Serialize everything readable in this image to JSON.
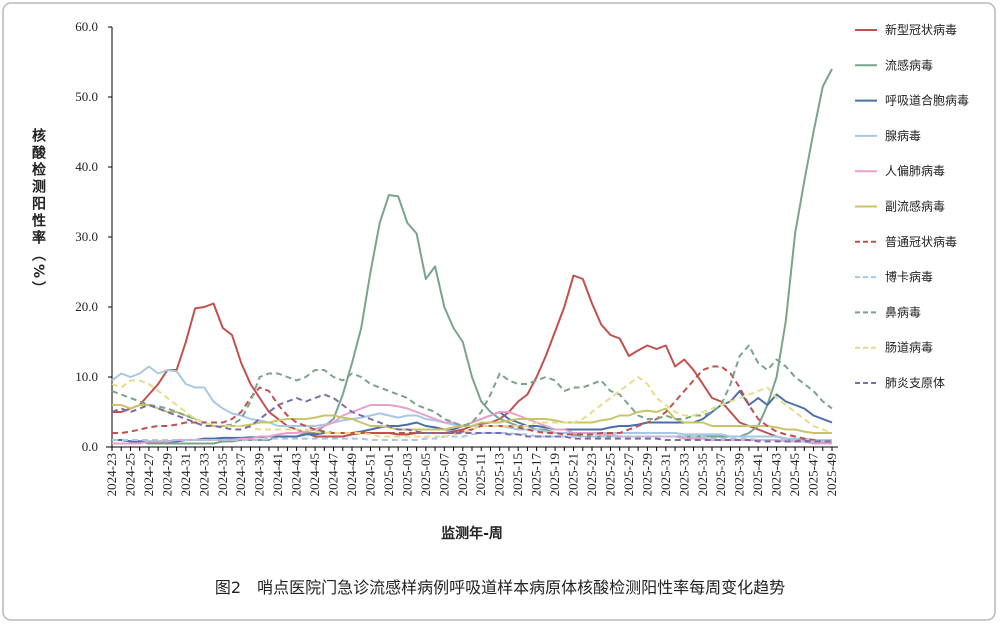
{
  "chart_data": {
    "type": "line",
    "title": "图2　哨点医院门急诊流感样病例呼吸道样本病原体核酸检测阳性率每周变化趋势",
    "x_label": "监测年-周",
    "y_label": "核酸检测阳性率（%）",
    "categories": [
      "2024-23",
      null,
      "2024-25",
      null,
      "2024-27",
      null,
      "2024-29",
      null,
      "2024-31",
      null,
      "2024-33",
      null,
      "2024-35",
      null,
      "2024-37",
      null,
      "2024-39",
      null,
      "2024-41",
      null,
      "2024-43",
      null,
      "2024-45",
      null,
      "2024-47",
      null,
      "2024-49",
      null,
      "2024-51",
      null,
      "2025-01",
      null,
      "2025-03",
      null,
      "2025-05",
      null,
      "2025-07",
      null,
      "2025-09",
      null,
      "2025-11",
      null,
      "2025-13",
      null,
      "2025-15",
      null,
      "2025-17",
      null,
      "2025-19",
      null,
      "2025-21",
      null,
      "2025-23",
      null,
      "2025-25",
      null,
      "2025-27",
      null,
      "2025-29",
      null,
      "2025-31",
      null,
      "2025-33",
      null,
      "2025-35",
      null,
      "2025-37",
      null,
      "2025-39",
      null,
      "2025-41",
      null,
      "2025-43",
      null,
      "2025-45",
      null,
      "2025-47",
      null,
      "2025-49"
    ],
    "ylim": [
      0,
      60
    ],
    "yticks": [
      {
        "value": 0,
        "label": "0.0"
      },
      {
        "value": 10,
        "label": "10.0"
      },
      {
        "value": 20,
        "label": "20.0"
      },
      {
        "value": 30,
        "label": "30.0"
      },
      {
        "value": 40,
        "label": "40.0"
      },
      {
        "value": 50,
        "label": "50.0"
      },
      {
        "value": 60,
        "label": "60.0"
      }
    ],
    "grid": false,
    "legend": "right",
    "series": [
      {
        "name": "新型冠状病毒",
        "color": "#c0504d",
        "dashed": false,
        "values": [
          5,
          5,
          5.5,
          6,
          7.5,
          9,
          11,
          11,
          15,
          19.8,
          20,
          20.5,
          17,
          16,
          12,
          9,
          7,
          5,
          4,
          3,
          2.5,
          2,
          1.5,
          1.5,
          1.5,
          1.5,
          1.8,
          2,
          2,
          2,
          2,
          1.8,
          1.8,
          2,
          2,
          2,
          2,
          2.2,
          2.5,
          3,
          3.3,
          3.5,
          4,
          5,
          6.5,
          7.5,
          10,
          13,
          16.5,
          20,
          24.5,
          24,
          20.5,
          17.5,
          16,
          15.5,
          13,
          13.8,
          14.5,
          14,
          14.5,
          11.5,
          12.5,
          11,
          9,
          7,
          6.5,
          5,
          3.5,
          3,
          2.5,
          2,
          1.5,
          1.2,
          1,
          1,
          0.8,
          0.8,
          0.8
        ]
      },
      {
        "name": "流感病毒",
        "color": "#7aa48a",
        "dashed": false,
        "values": [
          1,
          1,
          0.8,
          0.8,
          0.5,
          0.5,
          0.5,
          0.5,
          0.5,
          0.5,
          0.5,
          0.5,
          0.8,
          0.8,
          1,
          1,
          1,
          1,
          1.5,
          1.5,
          1.5,
          2,
          2,
          3,
          4,
          7.5,
          12,
          17,
          25,
          32,
          36,
          35.8,
          32,
          30.5,
          24,
          25.8,
          20,
          17,
          15,
          10,
          6.5,
          5,
          4,
          3.5,
          3,
          3,
          2.5,
          2.5,
          2,
          2,
          1.8,
          1.5,
          1.5,
          1.5,
          1.5,
          1.5,
          1.5,
          1.5,
          1.5,
          1.5,
          1.5,
          1.5,
          1.5,
          1.5,
          1.5,
          1.5,
          1.5,
          1.5,
          1.5,
          2,
          3,
          6,
          10,
          18,
          30.5,
          38,
          45,
          51.5,
          54
        ]
      },
      {
        "name": "呼吸道合胞病毒",
        "color": "#4a6ea8",
        "dashed": false,
        "values": [
          1,
          1,
          0.8,
          0.8,
          0.8,
          0.8,
          0.8,
          0.8,
          1,
          1,
          1.2,
          1.2,
          1.3,
          1.3,
          1.3,
          1.4,
          1.4,
          1.5,
          1.5,
          1.5,
          1.5,
          1.8,
          1.8,
          2,
          2,
          2,
          2,
          2.2,
          2.5,
          2.8,
          3,
          3,
          3.2,
          3.5,
          3,
          2.8,
          2.5,
          2.5,
          3,
          3.5,
          4,
          4.5,
          5,
          4,
          3.5,
          3,
          3,
          2.8,
          2.5,
          2.5,
          2.5,
          2.5,
          2.5,
          2.5,
          2.8,
          3,
          3,
          3.2,
          3.5,
          3.5,
          3.5,
          3.5,
          3.5,
          3.5,
          4,
          5,
          6,
          6.5,
          8,
          6,
          7,
          6,
          7.5,
          6.5,
          6,
          5.5,
          4.5,
          4,
          3.5
        ]
      },
      {
        "name": "腺病毒",
        "color": "#a7c7e7",
        "dashed": false,
        "values": [
          9.5,
          10.5,
          10,
          10.5,
          11.5,
          10.5,
          11,
          10.8,
          9,
          8.5,
          8.5,
          6.5,
          5.5,
          4.8,
          4.5,
          4,
          3.8,
          3.5,
          3,
          3,
          3,
          3,
          3,
          3.2,
          3.5,
          3.8,
          4,
          4.2,
          4.5,
          4.8,
          4.5,
          4.2,
          4.5,
          4.5,
          4,
          3.8,
          3.5,
          3.2,
          3,
          3,
          3,
          3,
          3,
          2.8,
          2.5,
          2.5,
          2.5,
          2.2,
          2,
          2,
          2,
          2,
          2,
          2,
          2,
          2,
          2,
          2,
          2,
          2,
          2,
          2,
          1.8,
          1.8,
          1.8,
          1.8,
          1.8,
          1.5,
          1.5,
          1.5,
          1.5,
          1.5,
          1.5,
          1.2,
          1.2,
          1.2,
          1,
          1,
          1
        ]
      },
      {
        "name": "人偏肺病毒",
        "color": "#e8a0c8",
        "dashed": false,
        "values": [
          0.5,
          0.5,
          0.5,
          0.5,
          0.8,
          0.8,
          0.8,
          1,
          1,
          1,
          1,
          1,
          1,
          1,
          1.2,
          1.2,
          1.5,
          1.5,
          1.8,
          2,
          2,
          2.2,
          2.5,
          3,
          3.5,
          4.5,
          5,
          5.5,
          6,
          6,
          6,
          5.8,
          5.5,
          5,
          4.5,
          4,
          3.5,
          3.5,
          3,
          3.5,
          4,
          4.5,
          5,
          5,
          4.5,
          4,
          3.5,
          3,
          2.5,
          2.5,
          2,
          2,
          2,
          1.8,
          1.8,
          1.5,
          1.5,
          1.5,
          1.5,
          1.5,
          1.5,
          1.5,
          1.2,
          1.2,
          1.2,
          1,
          1,
          1,
          1,
          1,
          1,
          1,
          1,
          0.8,
          0.8,
          0.8,
          0.5,
          0.5,
          0.5
        ]
      },
      {
        "name": "副流感病毒",
        "color": "#c8c46a",
        "dashed": false,
        "values": [
          6,
          6,
          5.5,
          6,
          6,
          5.5,
          5,
          5,
          4.5,
          4,
          3.5,
          3,
          3,
          3,
          3,
          3.2,
          3.5,
          3.5,
          3.8,
          4,
          4,
          4,
          4.2,
          4.5,
          4.5,
          4.2,
          4,
          3.5,
          3,
          3,
          2.8,
          2.5,
          2.5,
          2.5,
          2.5,
          2.5,
          2.5,
          2.8,
          3,
          3,
          3.5,
          3.5,
          3.5,
          3.8,
          4,
          4,
          4,
          4,
          3.8,
          3.5,
          3.5,
          3.5,
          3.5,
          3.8,
          4,
          4.5,
          4.5,
          5,
          5.2,
          5,
          5.5,
          4,
          3.5,
          3.5,
          3.5,
          3,
          3,
          3,
          3,
          3,
          3,
          3,
          2.8,
          2.5,
          2.5,
          2.2,
          2,
          2,
          2
        ]
      },
      {
        "name": "普通冠状病毒",
        "color": "#c0504d",
        "dashed": true,
        "values": [
          2,
          2,
          2.2,
          2.5,
          2.8,
          3,
          3,
          3.2,
          3.5,
          3.5,
          3.5,
          3.5,
          3.5,
          4,
          5,
          7,
          8.5,
          8,
          6,
          4.5,
          3.5,
          3,
          2.5,
          2.2,
          2,
          2,
          2,
          2,
          2,
          2,
          2,
          2,
          2,
          2,
          2,
          2,
          2,
          2,
          2.2,
          2.5,
          3,
          3,
          3,
          3,
          2.8,
          2.5,
          2.2,
          2,
          2,
          1.8,
          1.8,
          1.8,
          1.8,
          2,
          2,
          2,
          2.5,
          3,
          3.5,
          4,
          5,
          6.5,
          8,
          9.5,
          11,
          11.5,
          11.5,
          10.5,
          8.5,
          6,
          4,
          3,
          2.2,
          1.8,
          1.5,
          1.2,
          1,
          0.8,
          0.8
        ]
      },
      {
        "name": "博卡病毒",
        "color": "#a7c7e7",
        "dashed": true,
        "values": [
          1,
          1,
          1,
          1,
          1,
          1,
          1,
          1,
          1,
          1,
          1,
          1,
          1,
          1,
          1,
          1,
          1,
          1.2,
          1.2,
          1.2,
          1.2,
          1.2,
          1.2,
          1.2,
          1.2,
          1.2,
          1.2,
          1.2,
          1,
          1,
          1,
          1,
          1,
          1,
          1.2,
          1.2,
          1.5,
          1.5,
          1.5,
          1.8,
          2,
          2,
          2,
          2,
          1.8,
          1.8,
          1.5,
          1.5,
          1.5,
          1.5,
          1.5,
          1.5,
          1.5,
          1.5,
          1.5,
          1.5,
          1.5,
          1.5,
          1.5,
          1.5,
          1.5,
          1.5,
          1.5,
          1.5,
          1.5,
          1.2,
          1.2,
          1.2,
          1.2,
          1.2,
          1,
          1,
          1,
          1,
          1,
          0.8,
          0.8,
          0.8,
          0.8
        ]
      },
      {
        "name": "鼻病毒",
        "color": "#7aa48a",
        "dashed": true,
        "values": [
          8,
          7.5,
          7,
          6.5,
          6,
          5.8,
          5.5,
          5,
          4.5,
          4,
          3.5,
          3,
          3,
          3.2,
          4,
          6.5,
          10,
          10.5,
          10.5,
          10,
          9.5,
          10,
          11,
          11,
          10,
          9.5,
          10.5,
          10,
          9,
          8.5,
          8,
          7.5,
          7,
          6,
          5.5,
          5,
          4,
          3.5,
          3,
          3.5,
          5,
          7.5,
          10.5,
          9.5,
          9,
          9,
          9.5,
          10,
          9.5,
          8,
          8.5,
          8.5,
          9,
          9.5,
          8,
          7.5,
          6,
          4.5,
          4,
          4,
          4.5,
          4,
          4,
          4.5,
          4.5,
          5,
          6,
          9,
          13,
          14.5,
          12,
          11,
          12.5,
          11.5,
          10,
          9,
          8,
          6.5,
          5.5
        ]
      },
      {
        "name": "肠道病毒",
        "color": "#e6dc8a",
        "dashed": true,
        "values": [
          9,
          8.5,
          9.5,
          9.5,
          9,
          8,
          7,
          6,
          5,
          4,
          3.5,
          3,
          3,
          3,
          3,
          2.8,
          2.5,
          2.5,
          2.5,
          2.5,
          2.5,
          2.5,
          2.2,
          2,
          2,
          2,
          2,
          2,
          1.8,
          1.5,
          1.5,
          1.5,
          1.5,
          1.5,
          1.5,
          1.5,
          1.5,
          1.8,
          2,
          2.5,
          3,
          3,
          3,
          3,
          3,
          3,
          3.5,
          3.5,
          3.5,
          3.5,
          3.5,
          4,
          5,
          6,
          7,
          8,
          9,
          10,
          9,
          7,
          6,
          5,
          4.5,
          4.5,
          5,
          5.5,
          6,
          6.5,
          7,
          7.5,
          8,
          8.5,
          7,
          6,
          5,
          4,
          3,
          2.5,
          2
        ]
      },
      {
        "name": "肺炎支原体",
        "color": "#7e6aa8",
        "dashed": true,
        "values": [
          5,
          5.5,
          5,
          5.5,
          6,
          5.5,
          5,
          4.5,
          4,
          3.5,
          3,
          3,
          2.8,
          2.5,
          2.5,
          3,
          4,
          5,
          6,
          6.5,
          7,
          6.5,
          7,
          7.5,
          7,
          6,
          5,
          4.5,
          4,
          3.5,
          3,
          2.5,
          2.5,
          2.2,
          2,
          2,
          2,
          2,
          2,
          2,
          2,
          2,
          2,
          1.8,
          1.8,
          1.5,
          1.5,
          1.5,
          1.5,
          1.5,
          1.2,
          1.2,
          1.2,
          1.2,
          1.2,
          1.2,
          1.2,
          1.2,
          1.2,
          1.2,
          1,
          1,
          1,
          1,
          1,
          1,
          1,
          1,
          1,
          1,
          0.8,
          0.8,
          0.8,
          0.8,
          0.8,
          0.8,
          0.8,
          0.8,
          0.8
        ]
      }
    ]
  }
}
